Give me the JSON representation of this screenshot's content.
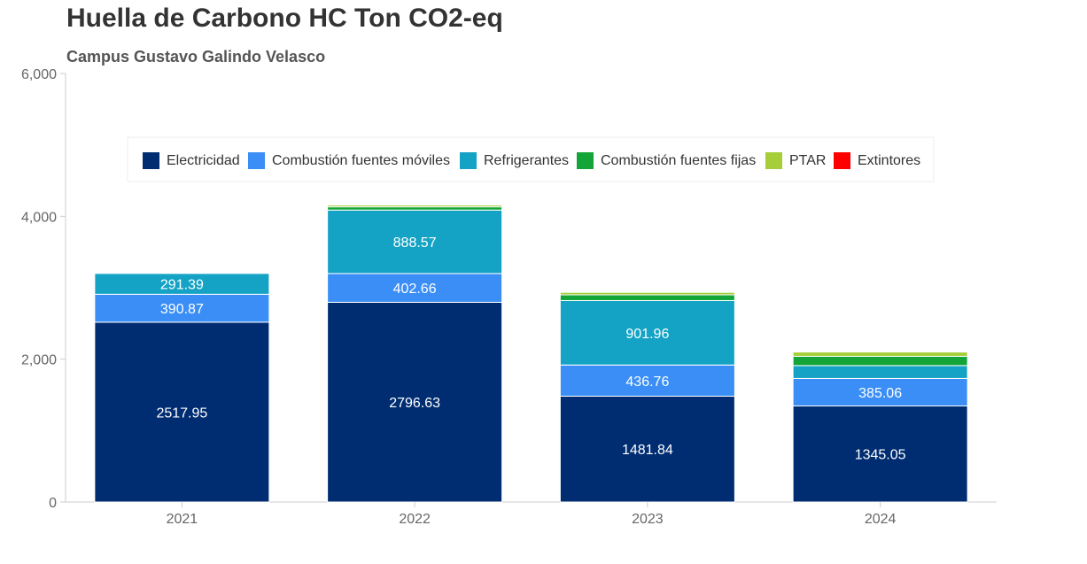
{
  "header": {
    "title": "Huella de Carbono HC Ton CO2-eq",
    "subtitle": "Campus Gustavo Galindo Velasco"
  },
  "chart_data": {
    "type": "bar",
    "stacked": true,
    "title": "Huella de Carbono HC Ton CO2-eq",
    "subtitle": "Campus Gustavo Galindo Velasco",
    "xlabel": "",
    "ylabel": "",
    "categories": [
      "2021",
      "2022",
      "2023",
      "2024"
    ],
    "ylim": [
      0,
      6000
    ],
    "yticks": [
      0,
      2000,
      4000,
      6000
    ],
    "ytick_labels": [
      "0",
      "2,000",
      "4,000",
      "6,000"
    ],
    "grid": false,
    "legend_position": "top-center",
    "series": [
      {
        "name": "Electricidad",
        "color": "#002d72",
        "values": [
          2517.95,
          2796.63,
          1481.84,
          1345.05
        ],
        "labels": [
          "2517.95",
          "2796.63",
          "1481.84",
          "1345.05"
        ]
      },
      {
        "name": "Combustión fuentes móviles",
        "color": "#3a8ef6",
        "values": [
          390.87,
          402.66,
          436.76,
          385.06
        ],
        "labels": [
          "390.87",
          "402.66",
          "436.76",
          "385.06"
        ]
      },
      {
        "name": "Refrigerantes",
        "color": "#14a3c5",
        "values": [
          291.39,
          888.57,
          901.96,
          180
        ],
        "labels": [
          "291.39",
          "888.57",
          "901.96",
          ""
        ]
      },
      {
        "name": "Combustión fuentes fijas",
        "color": "#13a538",
        "values": [
          0,
          45,
          80,
          130
        ],
        "labels": [
          "",
          "",
          "",
          ""
        ]
      },
      {
        "name": "PTAR",
        "color": "#a6ce39",
        "values": [
          0,
          25,
          35,
          60
        ],
        "labels": [
          "",
          "",
          "",
          ""
        ]
      },
      {
        "name": "Extintores",
        "color": "#ff0000",
        "values": [
          0,
          0,
          0,
          0
        ],
        "labels": [
          "",
          "",
          "",
          ""
        ]
      }
    ]
  }
}
